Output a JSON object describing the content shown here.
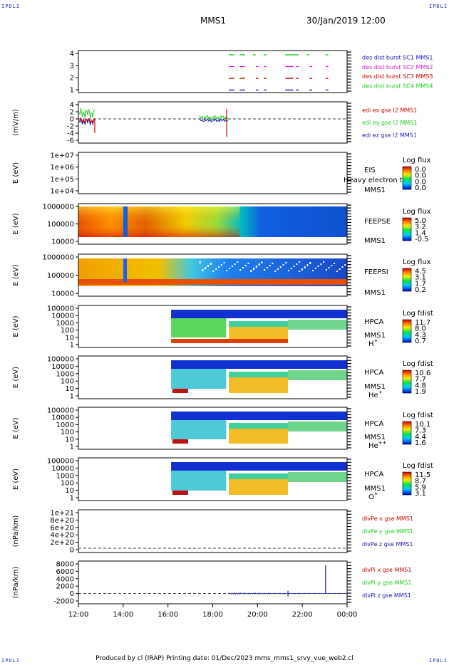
{
  "corners": {
    "tl": "IPDLI",
    "tr": "IPDLI",
    "bl": "IPDLI",
    "br": "IPDLI"
  },
  "title": {
    "satellite": "MMS1",
    "date": "30/Jan/2019 12:00"
  },
  "footer": {
    "text": "Produced by cl (IRAP)   Printing date: 01/Dec/2023   mms_mms1_srvy_vue_web2.cl"
  },
  "colors": {
    "red": "#d00000",
    "green": "#1fcc1f",
    "blue": "#1a1ab0",
    "magenta": "#d020d0"
  },
  "chart_data": [
    {
      "name": "panel-burst",
      "type": "line",
      "yticks": [
        "4",
        "3",
        "2",
        "1"
      ],
      "legend": [
        {
          "label": "des dist burst SC1 MMS1",
          "color": "#1a1ab0"
        },
        {
          "label": "des dist burst SC2 MMS2",
          "color": "#d020d0"
        },
        {
          "label": "des dist burst SC3 MMS3",
          "color": "#d00000"
        },
        {
          "label": "des dist burst SC4 MMS4",
          "color": "#1fcc1f"
        }
      ]
    },
    {
      "name": "panel-edi",
      "type": "line",
      "ylabel": "(mV/m)",
      "yticks": [
        "4",
        "2",
        "0",
        "-2",
        "-4",
        "-6"
      ],
      "legend": [
        {
          "label": "edi ex gse l2 MMS1",
          "color": "#d00000"
        },
        {
          "label": "edi ey gse l2 MMS1",
          "color": "#1fcc1f"
        },
        {
          "label": "edi ez gse l2 MMS1",
          "color": "#1a1ab0"
        }
      ]
    },
    {
      "name": "panel-eis",
      "type": "heatmap",
      "ylabel": "E (eV)",
      "yticks": [
        "1e+07",
        "1e+06",
        "1e+05",
        "1e+04"
      ],
      "labels": [
        "EIS",
        "MMS1"
      ],
      "overlay": "Heavy electron to",
      "colorbar": {
        "title": "Log flux",
        "ticks": [
          "0.0",
          "0.0",
          "0.0",
          "0.0"
        ]
      }
    },
    {
      "name": "panel-feepse",
      "type": "heatmap",
      "ylabel": "E (eV)",
      "yticks": [
        "1000000",
        "100000",
        "10000"
      ],
      "labels": [
        "FEEPSE",
        "MMS1"
      ],
      "colorbar": {
        "title": "Log flux",
        "ticks": [
          "5.0",
          "3.2",
          "1.4",
          "-0.5"
        ]
      }
    },
    {
      "name": "panel-feepsi",
      "type": "heatmap",
      "ylabel": "E (eV)",
      "yticks": [
        "1000000",
        "100000",
        "10000"
      ],
      "labels": [
        "FEEPSI",
        "MMS1"
      ],
      "colorbar": {
        "title": "Log flux",
        "ticks": [
          "4.5",
          "3.1",
          "1.7",
          "0.2"
        ]
      }
    },
    {
      "name": "panel-hpca-h",
      "type": "heatmap",
      "ylabel": "E (eV)",
      "yticks": [
        "100000",
        "10000",
        "1000",
        "100",
        "10",
        "1"
      ],
      "labels": [
        "HPCA",
        "MMS1"
      ],
      "species": "H",
      "species_sup": "+",
      "colorbar": {
        "title": "Log fdist",
        "ticks": [
          "11.7",
          "8.0",
          "4.3",
          "0.7"
        ]
      }
    },
    {
      "name": "panel-hpca-he",
      "type": "heatmap",
      "ylabel": "E (eV)",
      "yticks": [
        "100000",
        "10000",
        "1000",
        "100",
        "10",
        "1"
      ],
      "labels": [
        "HPCA",
        "MMS1"
      ],
      "species": "He",
      "species_sup": "+",
      "colorbar": {
        "title": "Log fdist",
        "ticks": [
          "10.6",
          "7.7",
          "4.8",
          "1.9"
        ]
      }
    },
    {
      "name": "panel-hpca-hepp",
      "type": "heatmap",
      "ylabel": "E (eV)",
      "yticks": [
        "100000",
        "10000",
        "1000",
        "100",
        "10",
        "1"
      ],
      "labels": [
        "HPCA",
        "MMS1"
      ],
      "species": "He",
      "species_sup": "++",
      "colorbar": {
        "title": "Log fdist",
        "ticks": [
          "10.1",
          "7.3",
          "4.4",
          "1.6"
        ]
      }
    },
    {
      "name": "panel-hpca-o",
      "type": "heatmap",
      "ylabel": "E (eV)",
      "yticks": [
        "100000",
        "10000",
        "1000",
        "100",
        "10",
        "1"
      ],
      "labels": [
        "HPCA",
        "MMS1"
      ],
      "species": "O",
      "species_sup": "+",
      "colorbar": {
        "title": "Log fdist",
        "ticks": [
          "11.5",
          "8.7",
          "5.9",
          "3.1"
        ]
      }
    },
    {
      "name": "panel-divpe",
      "type": "line",
      "ylabel": "(nPa/km)",
      "yticks": [
        "1e+21",
        "8e+20",
        "6e+20",
        "4e+20",
        "2e+20",
        "0"
      ],
      "legend": [
        {
          "label": "divPe x gse MMS1",
          "color": "#d00000"
        },
        {
          "label": "divPe y gse MMS1",
          "color": "#1fcc1f"
        },
        {
          "label": "divPe z gse MMS1",
          "color": "#1a1ab0"
        }
      ]
    },
    {
      "name": "panel-divpi",
      "type": "line",
      "ylabel": "(nPa/km)",
      "yticks": [
        "8000",
        "6000",
        "4000",
        "2000",
        "0",
        "-2000"
      ],
      "legend": [
        {
          "label": "divPi x gse MMS1",
          "color": "#d00000"
        },
        {
          "label": "divPi y gse MMS1",
          "color": "#1fcc1f"
        },
        {
          "label": "divPi z gse MMS1",
          "color": "#1a1ab0"
        }
      ]
    }
  ],
  "xaxis": {
    "ticks": [
      "12:00",
      "14:00",
      "16:00",
      "18:00",
      "20:00",
      "22:00",
      "00:00"
    ]
  }
}
